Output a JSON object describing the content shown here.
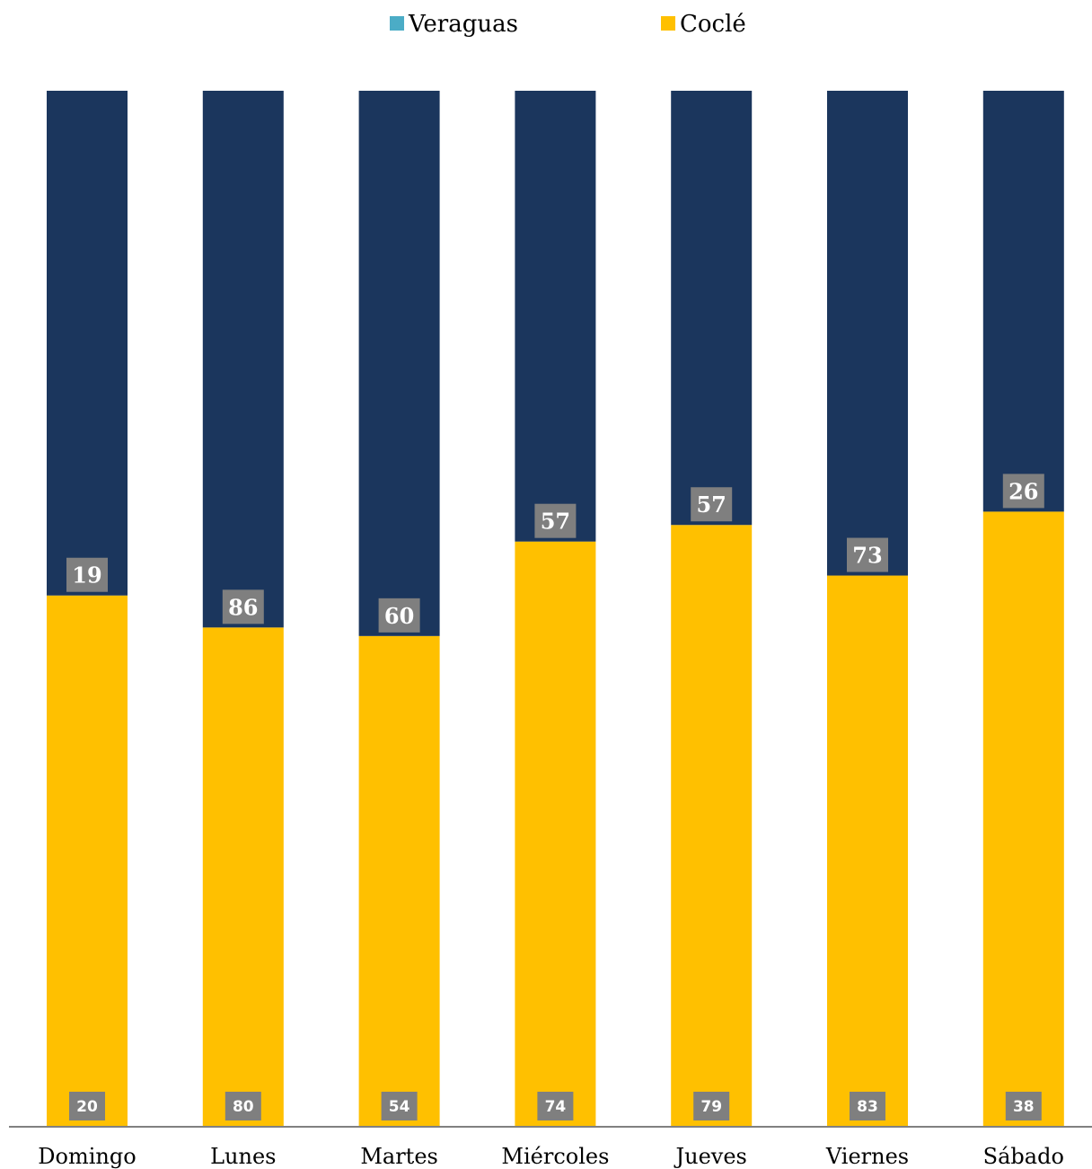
{
  "chart_data": {
    "type": "bar",
    "stacked": "percent",
    "categories": [
      "Domingo",
      "Lunes",
      "Martes",
      "Miércoles",
      "Jueves",
      "Viernes",
      "Sábado"
    ],
    "series": [
      {
        "name": "Coclé",
        "values": [
          20,
          80,
          54,
          74,
          79,
          83,
          38
        ],
        "color": "#FFC000",
        "legend_color": "#FFC000"
      },
      {
        "name": "Veraguas",
        "values": [
          19,
          86,
          60,
          57,
          57,
          73,
          26
        ],
        "color": "#1B365D",
        "legend_color": "#4BACC6"
      }
    ],
    "legend": {
      "position": "top-center",
      "order": [
        "Veraguas",
        "Coclé"
      ]
    },
    "label_box_color": "#7F7F7F",
    "axis_color": "#808080",
    "grid": false
  }
}
